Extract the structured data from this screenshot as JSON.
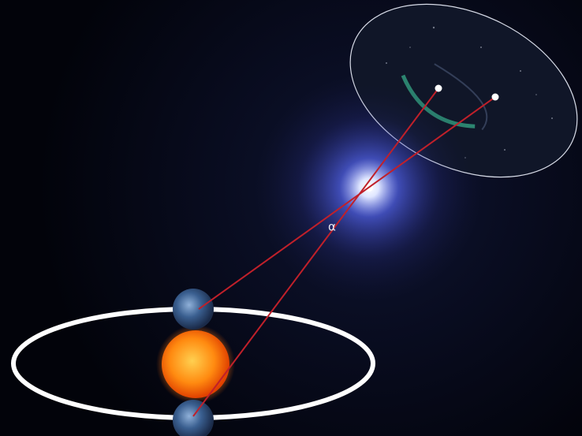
{
  "labels": {
    "angle": "α"
  }
}
